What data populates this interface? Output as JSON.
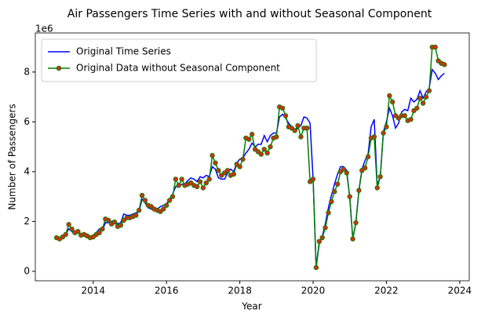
{
  "chart_data": {
    "type": "line",
    "title": "Air Passengers Time Series with and without Seasonal Component",
    "x_label": "Year",
    "y_label": "Number of Passengers",
    "y_offset_label": "1e6",
    "xlim": [
      2012.42,
      2024.26
    ],
    "ylim": [
      -0.38,
      9.57
    ],
    "xticks": [
      2014,
      2016,
      2018,
      2020,
      2022,
      2024
    ],
    "yticks": [
      0,
      2,
      4,
      6,
      8
    ],
    "legend": "upper left",
    "grid": false,
    "x": [
      2013.0,
      2013.083,
      2013.167,
      2013.25,
      2013.333,
      2013.417,
      2013.5,
      2013.583,
      2013.667,
      2013.75,
      2013.833,
      2013.917,
      2014.0,
      2014.083,
      2014.167,
      2014.25,
      2014.333,
      2014.417,
      2014.5,
      2014.583,
      2014.667,
      2014.75,
      2014.833,
      2014.917,
      2015.0,
      2015.083,
      2015.167,
      2015.25,
      2015.333,
      2015.417,
      2015.5,
      2015.583,
      2015.667,
      2015.75,
      2015.833,
      2015.917,
      2016.0,
      2016.083,
      2016.167,
      2016.25,
      2016.333,
      2016.417,
      2016.5,
      2016.583,
      2016.667,
      2016.75,
      2016.833,
      2016.917,
      2017.0,
      2017.083,
      2017.167,
      2017.25,
      2017.333,
      2017.417,
      2017.5,
      2017.583,
      2017.667,
      2017.75,
      2017.833,
      2017.917,
      2018.0,
      2018.083,
      2018.167,
      2018.25,
      2018.333,
      2018.417,
      2018.5,
      2018.583,
      2018.667,
      2018.75,
      2018.833,
      2018.917,
      2019.0,
      2019.083,
      2019.167,
      2019.25,
      2019.333,
      2019.417,
      2019.5,
      2019.583,
      2019.667,
      2019.75,
      2019.833,
      2019.917,
      2020.0,
      2020.083,
      2020.167,
      2020.25,
      2020.333,
      2020.417,
      2020.5,
      2020.583,
      2020.667,
      2020.75,
      2020.833,
      2020.917,
      2021.0,
      2021.083,
      2021.167,
      2021.25,
      2021.333,
      2021.417,
      2021.5,
      2021.583,
      2021.667,
      2021.75,
      2021.833,
      2021.917,
      2022.0,
      2022.083,
      2022.167,
      2022.25,
      2022.333,
      2022.417,
      2022.5,
      2022.583,
      2022.667,
      2022.75,
      2022.833,
      2022.917,
      2023.0,
      2023.083,
      2023.167,
      2023.25,
      2023.333,
      2023.417,
      2023.5,
      2023.583
    ],
    "series": [
      {
        "name": "Original Time Series",
        "color": "#0000ff",
        "marker": false,
        "values": [
          1.35,
          1.3,
          1.4,
          1.5,
          1.7,
          1.6,
          1.5,
          1.55,
          1.5,
          1.45,
          1.5,
          1.4,
          1.45,
          1.55,
          1.7,
          1.65,
          1.95,
          1.95,
          2.0,
          2.05,
          1.9,
          1.95,
          2.3,
          2.25,
          2.25,
          2.3,
          2.35,
          2.4,
          2.9,
          2.75,
          2.55,
          2.5,
          2.45,
          2.5,
          2.6,
          2.65,
          2.7,
          2.9,
          3.1,
          3.4,
          3.4,
          3.5,
          3.5,
          3.65,
          3.75,
          3.7,
          3.6,
          3.8,
          3.75,
          3.85,
          3.8,
          4.2,
          4.1,
          3.75,
          3.7,
          3.7,
          3.95,
          4.1,
          4.0,
          4.35,
          4.5,
          4.55,
          4.75,
          4.9,
          5.15,
          5.0,
          5.1,
          5.1,
          5.45,
          5.2,
          5.45,
          5.55,
          5.55,
          6.2,
          6.3,
          6.15,
          5.95,
          5.8,
          5.6,
          5.75,
          5.85,
          6.2,
          6.15,
          5.95,
          3.7,
          0.15,
          1.1,
          1.4,
          1.9,
          2.55,
          3.05,
          3.5,
          3.9,
          4.2,
          4.2,
          4.05,
          2.95,
          1.3,
          1.95,
          3.25,
          4.1,
          4.45,
          4.7,
          5.8,
          6.1,
          3.45,
          3.8,
          5.6,
          6.0,
          6.55,
          6.25,
          5.75,
          5.95,
          6.4,
          6.5,
          6.45,
          6.95,
          6.8,
          6.9,
          7.25,
          6.95,
          7.2,
          7.35,
          8.1,
          7.95,
          7.7,
          7.85,
          7.95
        ]
      },
      {
        "name": "Original Data without Seasonal Component",
        "color": "#008000",
        "marker": true,
        "marker_color": "#cc3311",
        "values": [
          1.35,
          1.3,
          1.38,
          1.48,
          1.88,
          1.7,
          1.55,
          1.6,
          1.45,
          1.48,
          1.42,
          1.35,
          1.38,
          1.48,
          1.55,
          1.7,
          2.1,
          2.05,
          1.9,
          1.98,
          1.8,
          1.85,
          2.05,
          2.15,
          2.15,
          2.2,
          2.25,
          2.45,
          3.05,
          2.85,
          2.65,
          2.6,
          2.5,
          2.45,
          2.4,
          2.5,
          2.65,
          2.85,
          3.0,
          3.7,
          3.45,
          3.7,
          3.45,
          3.5,
          3.55,
          3.45,
          3.4,
          3.6,
          3.35,
          3.55,
          3.7,
          4.65,
          4.35,
          4.05,
          3.85,
          3.95,
          4.05,
          3.85,
          3.9,
          4.3,
          4.2,
          4.5,
          5.35,
          5.3,
          5.5,
          4.9,
          4.8,
          4.7,
          4.9,
          4.75,
          5.0,
          5.35,
          5.4,
          6.6,
          6.55,
          6.25,
          5.8,
          5.75,
          5.65,
          5.85,
          5.4,
          5.75,
          5.75,
          3.6,
          3.7,
          0.15,
          1.2,
          1.35,
          1.75,
          2.35,
          2.8,
          3.2,
          3.5,
          4.0,
          4.1,
          3.95,
          3.0,
          1.3,
          1.95,
          3.25,
          4.05,
          4.15,
          4.6,
          5.35,
          5.4,
          3.35,
          3.8,
          5.55,
          5.8,
          7.05,
          6.8,
          6.25,
          6.15,
          6.25,
          6.25,
          6.05,
          6.1,
          6.45,
          6.55,
          6.95,
          6.75,
          7.0,
          7.25,
          9.0,
          9.0,
          8.45,
          8.35,
          8.3
        ]
      }
    ]
  }
}
